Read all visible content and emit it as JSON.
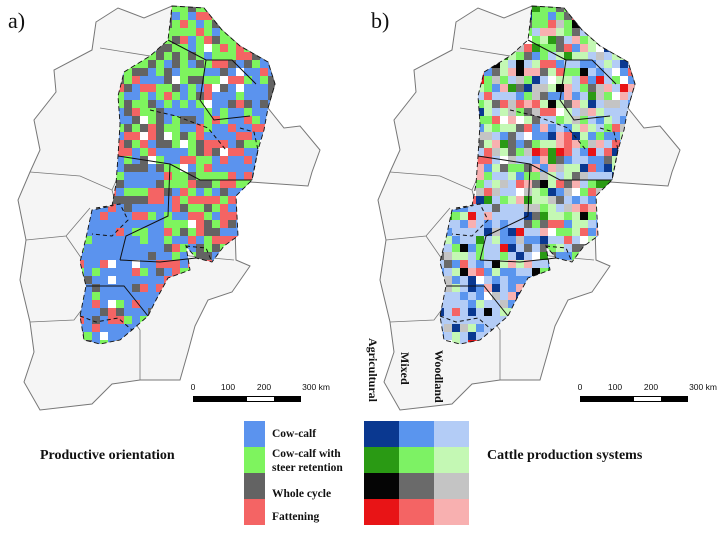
{
  "panels": {
    "a": {
      "label": "a)",
      "caption": "Productive orientation"
    },
    "b": {
      "label": "b)",
      "caption": "Cattle production systems"
    }
  },
  "scale": {
    "ticks": [
      "0",
      "100",
      "200",
      "300 km"
    ]
  },
  "legend": {
    "items": [
      {
        "label": "Cow-calf",
        "color": "#5b93ee"
      },
      {
        "label": "Cow-calf with\nsteer retention",
        "color": "#7ef45e"
      },
      {
        "label": "Whole cycle",
        "color": "#636363"
      },
      {
        "label": "Fattening",
        "color": "#f46464"
      }
    ],
    "system_headers": [
      "Agricultural",
      "Mixed",
      "Woodland"
    ],
    "matrix_colors": [
      [
        "#0a3890",
        "#5a95ee",
        "#b3ccf6"
      ],
      [
        "#2a9a14",
        "#7df264",
        "#c4f8b4"
      ],
      [
        "#050505",
        "#6a6a6a",
        "#c4c4c4"
      ],
      [
        "#e81416",
        "#f46464",
        "#f8b0b0"
      ]
    ]
  },
  "colors": {
    "province_fill": "#f5f5f5",
    "province_stroke": "#777777",
    "region_stroke": "#111111"
  }
}
